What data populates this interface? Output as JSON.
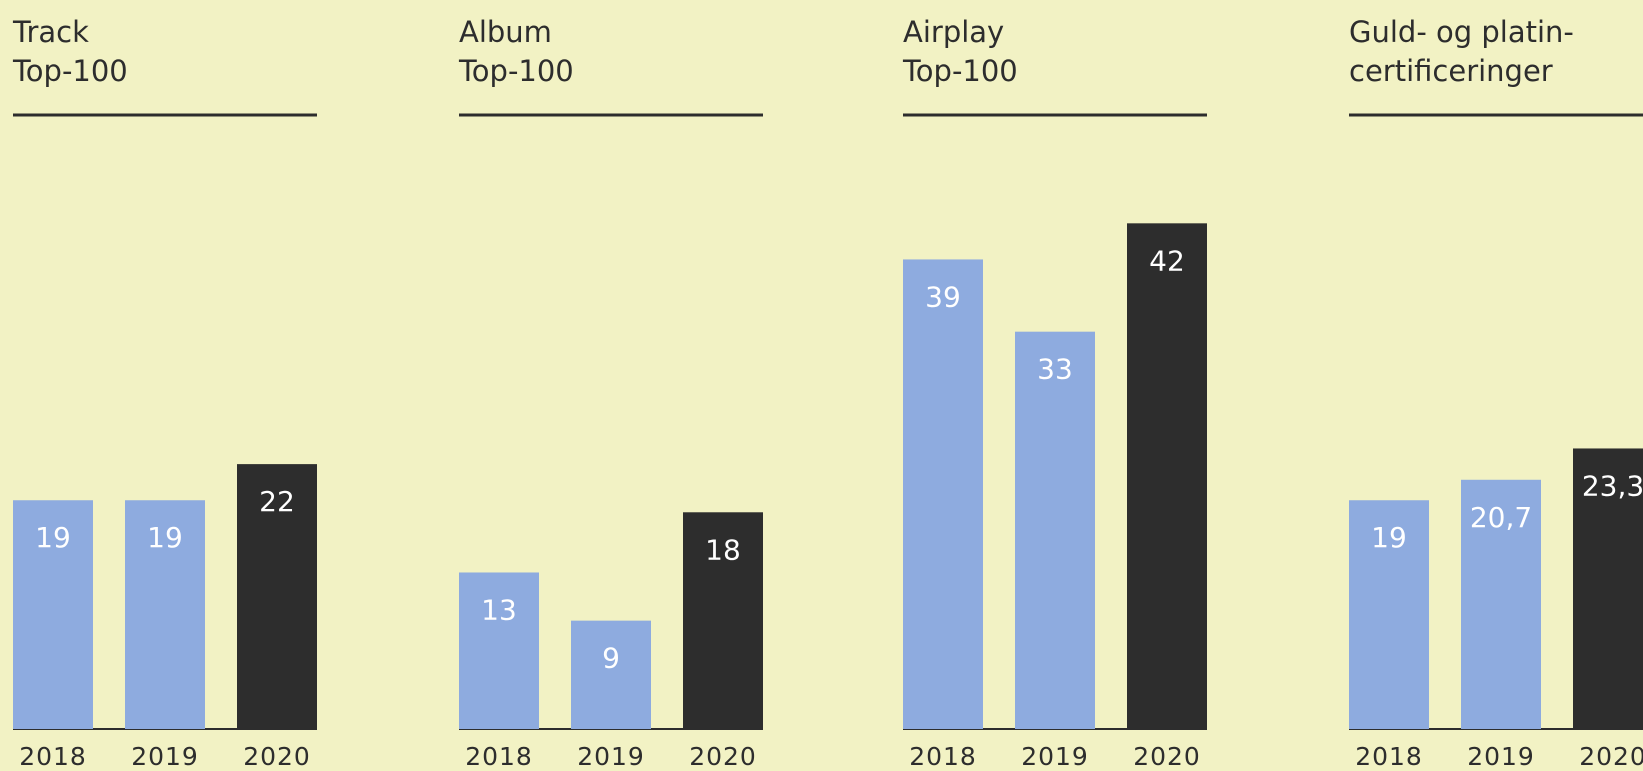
{
  "chart_data": [
    {
      "type": "bar",
      "title": [
        "Track",
        "Top-100"
      ],
      "categories": [
        "2018",
        "2019",
        "2020"
      ],
      "values": [
        19,
        19,
        22
      ],
      "colors": [
        "#8eabdf",
        "#8eabdf",
        "#2d2d2d"
      ],
      "ylim": [
        0,
        50
      ]
    },
    {
      "type": "bar",
      "title": [
        "Album",
        "Top-100"
      ],
      "categories": [
        "2018",
        "2019",
        "2020"
      ],
      "values": [
        13,
        9,
        18
      ],
      "colors": [
        "#8eabdf",
        "#8eabdf",
        "#2d2d2d"
      ],
      "ylim": [
        0,
        50
      ]
    },
    {
      "type": "bar",
      "title": [
        "Airplay",
        "Top-100"
      ],
      "categories": [
        "2018",
        "2019",
        "2020"
      ],
      "values": [
        39,
        33,
        42
      ],
      "colors": [
        "#8eabdf",
        "#8eabdf",
        "#2d2d2d"
      ],
      "ylim": [
        0,
        50
      ]
    },
    {
      "type": "bar",
      "title": [
        "Guld- og platin-",
        "certificeringer"
      ],
      "categories": [
        "2018",
        "2019",
        "2020"
      ],
      "values": [
        19,
        20.7,
        23.3
      ],
      "value_labels": [
        "19",
        "20,7",
        "23,3"
      ],
      "colors": [
        "#8eabdf",
        "#8eabdf",
        "#2d2d2d"
      ],
      "ylim": [
        0,
        50
      ]
    }
  ]
}
